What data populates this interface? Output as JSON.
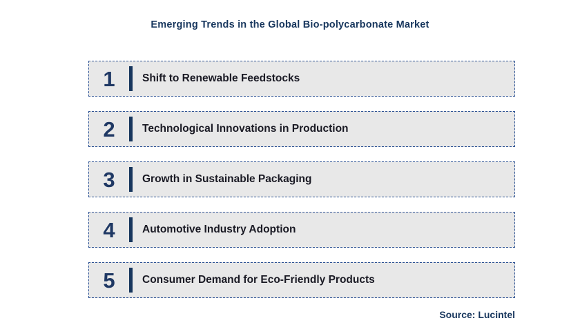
{
  "title": "Emerging Trends in the Global Bio-polycarbonate Market",
  "source": "Source: Lucintel",
  "colors": {
    "title_navy": "#17365D",
    "number_navy": "#1F3864",
    "box_background": "#E8E8E8",
    "dashed_border_blue": "#2E5395",
    "divider_navy": "#17365D"
  },
  "trends": [
    {
      "number": "1",
      "label": "Shift to Renewable Feedstocks"
    },
    {
      "number": "2",
      "label": "Technological Innovations in Production"
    },
    {
      "number": "3",
      "label": "Growth in Sustainable Packaging"
    },
    {
      "number": "4",
      "label": "Automotive Industry Adoption"
    },
    {
      "number": "5",
      "label": "Consumer Demand for Eco-Friendly Products"
    }
  ]
}
